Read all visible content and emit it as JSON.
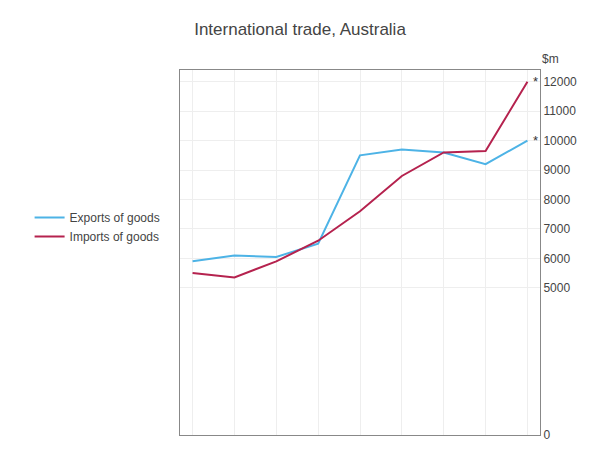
{
  "chart_data": {
    "type": "line",
    "title": "International trade, Australia",
    "ylabel": "$m",
    "x": [
      0,
      1,
      2,
      3,
      4,
      5,
      6,
      7,
      8
    ],
    "series": [
      {
        "name": "Exports of goods",
        "color": "#4db3e6",
        "values": [
          5900,
          6100,
          6050,
          6500,
          9500,
          9700,
          9600,
          9200,
          10000
        ]
      },
      {
        "name": "Imports of goods",
        "color": "#b5224e",
        "values": [
          5500,
          5350,
          5900,
          6600,
          7600,
          8800,
          9600,
          9650,
          12000
        ]
      }
    ],
    "xlim": [
      -0.3,
      8.3
    ],
    "xticks": [
      0,
      1,
      2,
      3,
      4,
      5,
      6,
      7,
      8
    ],
    "ylim": [
      0,
      12400
    ],
    "yticks": [
      0,
      5000,
      6000,
      7000,
      8000,
      9000,
      10000,
      11000,
      12000
    ],
    "tick_labels": "y",
    "grid": true,
    "legend": "left",
    "annotations": [
      {
        "text": "*",
        "x": 8,
        "y": 10000
      },
      {
        "text": "*",
        "x": 8,
        "y": 12000
      }
    ]
  }
}
